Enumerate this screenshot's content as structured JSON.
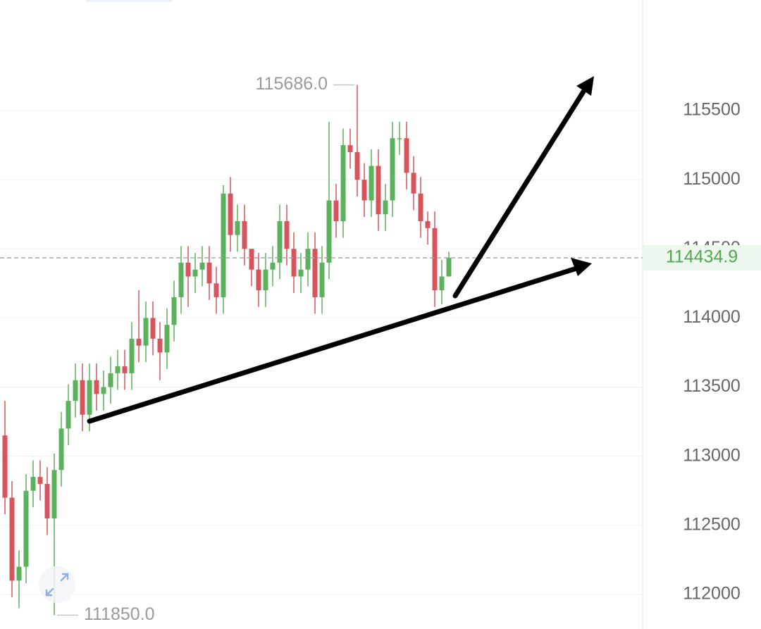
{
  "chart_data": {
    "type": "candlestick",
    "ylim": [
      111750,
      116300
    ],
    "yticks": [
      112000,
      112500,
      113000,
      113500,
      114000,
      114500,
      115000,
      115500
    ],
    "grid": true,
    "up_color": "#5cb25c",
    "down_color": "#d6545c",
    "current_price": 114434.9,
    "max_label": {
      "value": 115686,
      "label": "115686.0"
    },
    "min_label": {
      "value": 111850,
      "label": "111850.0"
    },
    "open": [
      113150,
      112700,
      112100,
      112200,
      112750,
      112850,
      112800,
      112550,
      112900,
      113200,
      113400,
      113550,
      113300,
      113550,
      113450,
      113500,
      113600,
      113650,
      113600,
      113850,
      113800,
      114000,
      113850,
      113750,
      113950,
      114150,
      114400,
      114300,
      114350,
      114400,
      114250,
      114150,
      114900,
      114600,
      114700,
      114500,
      114350,
      114200,
      114350,
      114400,
      114700,
      114500,
      114300,
      114350,
      114500,
      114150,
      114400,
      114850,
      114700,
      115250,
      115200,
      115000,
      114850,
      115100,
      114750,
      114850,
      115300,
      115300,
      115050,
      114900,
      114700,
      114650,
      114200,
      114300
    ],
    "high": [
      113400,
      112820,
      112320,
      112870,
      112970,
      112970,
      112920,
      113020,
      113320,
      113520,
      113670,
      113670,
      113670,
      113670,
      113620,
      113720,
      113770,
      113770,
      113970,
      114200,
      114120,
      114120,
      113970,
      114070,
      114270,
      114520,
      114520,
      114470,
      114520,
      114520,
      114370,
      114960,
      115020,
      114820,
      114820,
      114470,
      114470,
      114470,
      114520,
      114820,
      114820,
      114620,
      114470,
      114620,
      114620,
      114520,
      115420,
      114970,
      115370,
      115370,
      115686,
      115120,
      115220,
      115220,
      114970,
      115420,
      115420,
      115420,
      115170,
      115020,
      114770,
      114770,
      114420,
      114480
    ],
    "low": [
      112580,
      111980,
      111900,
      112080,
      112630,
      112680,
      112430,
      111850,
      112780,
      113080,
      113280,
      113180,
      113180,
      113330,
      113330,
      113380,
      113480,
      113480,
      113480,
      113680,
      113680,
      113730,
      113550,
      113630,
      113830,
      114030,
      114080,
      114180,
      114230,
      114130,
      114030,
      114030,
      114480,
      114480,
      114380,
      114230,
      114080,
      114080,
      114230,
      114280,
      114380,
      114180,
      114180,
      114230,
      114030,
      114030,
      114280,
      114580,
      114580,
      115080,
      114880,
      114730,
      114730,
      114630,
      114630,
      114730,
      115180,
      114930,
      114780,
      114580,
      114530,
      114080,
      114100,
      114300
    ],
    "close": [
      112700,
      112100,
      112200,
      112750,
      112850,
      112800,
      112550,
      112900,
      113200,
      113400,
      113550,
      113300,
      113550,
      113450,
      113500,
      113600,
      113650,
      113600,
      113850,
      113800,
      114000,
      113850,
      113750,
      113950,
      114150,
      114400,
      114300,
      114350,
      114400,
      114250,
      114150,
      114900,
      114600,
      114700,
      114500,
      114350,
      114200,
      114350,
      114400,
      114700,
      114500,
      114300,
      114350,
      114500,
      114150,
      114400,
      114850,
      114700,
      115250,
      115200,
      115000,
      114850,
      115100,
      114750,
      114850,
      115300,
      115300,
      115050,
      114900,
      114700,
      114650,
      114200,
      114300,
      114434.9
    ]
  }
}
